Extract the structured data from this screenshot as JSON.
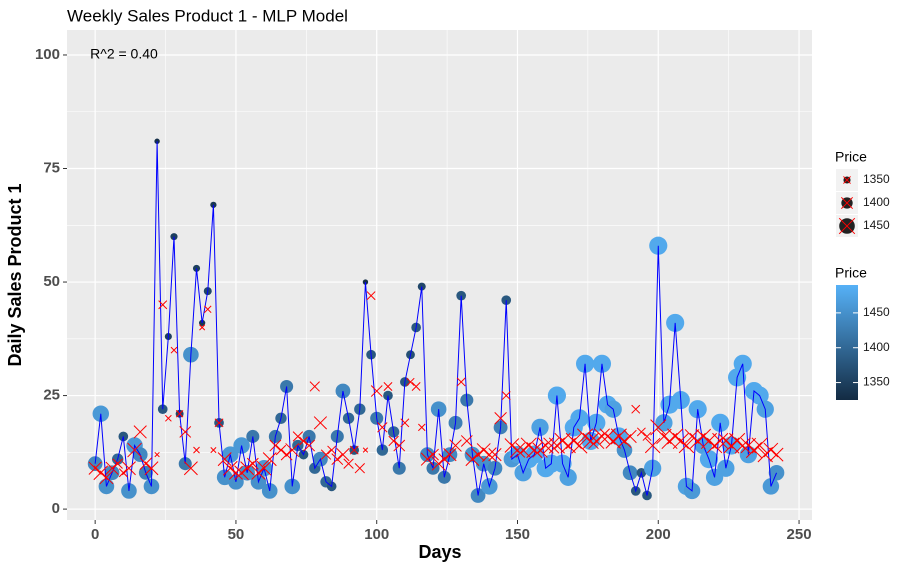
{
  "chart_data": {
    "type": "scatter",
    "title": "Weekly Sales Product 1 - MLP Model",
    "annotation": "R^2 = 0.40",
    "x_label": "Days",
    "y_label": "Daily Sales Product 1",
    "xlim": [
      -10,
      254.6
    ],
    "ylim": [
      -2.4,
      105.5
    ],
    "xticks": [
      0,
      50,
      100,
      150,
      200,
      250
    ],
    "yticks": [
      0,
      25,
      50,
      75,
      100
    ],
    "grid": true,
    "x": [
      0,
      2,
      4,
      6,
      8,
      10,
      12,
      14,
      16,
      18,
      20,
      22,
      24,
      26,
      28,
      30,
      32,
      34,
      36,
      38,
      40,
      42,
      44,
      46,
      48,
      50,
      52,
      54,
      56,
      58,
      60,
      62,
      64,
      66,
      68,
      70,
      72,
      74,
      76,
      78,
      80,
      82,
      84,
      86,
      88,
      90,
      92,
      94,
      96,
      98,
      100,
      102,
      104,
      106,
      108,
      110,
      112,
      114,
      116,
      118,
      120,
      122,
      124,
      126,
      128,
      130,
      132,
      134,
      136,
      138,
      140,
      142,
      144,
      146,
      148,
      150,
      152,
      154,
      156,
      158,
      160,
      162,
      164,
      166,
      168,
      170,
      172,
      174,
      176,
      178,
      180,
      182,
      184,
      186,
      188,
      190,
      192,
      194,
      196,
      198,
      200,
      202,
      204,
      206,
      208,
      210,
      212,
      214,
      216,
      218,
      220,
      222,
      224,
      226,
      228,
      230,
      232,
      234,
      236,
      238,
      240,
      242
    ],
    "sales": {
      "color": "#0000ff",
      "values": [
        10,
        21,
        5,
        8,
        11,
        16,
        4,
        14,
        12,
        8,
        5,
        81,
        22,
        38,
        60,
        21,
        10,
        34,
        53,
        41,
        48,
        67,
        19,
        7,
        12,
        6,
        14,
        8,
        16,
        6,
        9,
        4,
        16,
        20,
        27,
        5,
        14,
        12,
        16,
        9,
        11,
        6,
        5,
        16,
        26,
        20,
        13,
        22,
        50,
        34,
        20,
        13,
        25,
        17,
        9,
        28,
        34,
        40,
        49,
        12,
        9,
        22,
        7,
        12,
        19,
        47,
        24,
        12,
        3,
        10,
        5,
        9,
        18,
        46,
        11,
        12,
        8,
        11,
        12,
        18,
        9,
        10,
        25,
        10,
        7,
        18,
        20,
        32,
        15,
        19,
        32,
        23,
        22,
        16,
        13,
        8,
        4,
        8,
        3,
        9,
        58,
        19,
        23,
        41,
        24,
        5,
        4,
        22,
        14,
        11,
        7,
        19,
        9,
        14,
        29,
        32,
        12,
        26,
        25,
        22,
        5,
        8
      ]
    },
    "price": [
      1440,
      1460,
      1450,
      1440,
      1400,
      1380,
      1450,
      1460,
      1440,
      1430,
      1450,
      1330,
      1380,
      1350,
      1350,
      1360,
      1420,
      1450,
      1350,
      1340,
      1360,
      1340,
      1380,
      1450,
      1460,
      1450,
      1460,
      1450,
      1420,
      1450,
      1460,
      1450,
      1420,
      1400,
      1420,
      1450,
      1400,
      1380,
      1420,
      1400,
      1440,
      1400,
      1380,
      1420,
      1440,
      1400,
      1380,
      1400,
      1330,
      1380,
      1420,
      1400,
      1380,
      1400,
      1420,
      1380,
      1370,
      1380,
      1360,
      1440,
      1420,
      1450,
      1420,
      1440,
      1430,
      1380,
      1420,
      1450,
      1440,
      1450,
      1460,
      1440,
      1430,
      1380,
      1460,
      1470,
      1470,
      1480,
      1480,
      1470,
      1480,
      1480,
      1480,
      1480,
      1470,
      1480,
      1480,
      1480,
      1480,
      1480,
      1480,
      1480,
      1470,
      1480,
      1450,
      1440,
      1380,
      1380,
      1380,
      1470,
      1480,
      1470,
      1480,
      1480,
      1480,
      1470,
      1460,
      1480,
      1470,
      1480,
      1470,
      1480,
      1470,
      1480,
      1480,
      1480,
      1470,
      1480,
      1480,
      1470,
      1460,
      1450
    ],
    "predicted": {
      "color": "#ff0000",
      "values": [
        9,
        8,
        7,
        9,
        10,
        8,
        9,
        13,
        17,
        10,
        9,
        12,
        45,
        20,
        35,
        21,
        17,
        9,
        13,
        40,
        44,
        13,
        19,
        11,
        9,
        8,
        8,
        9,
        10,
        8,
        9,
        11,
        14,
        13,
        12,
        13,
        16,
        15,
        14,
        27,
        19,
        12,
        13,
        11,
        12,
        10,
        13,
        9,
        13,
        47,
        26,
        18,
        27,
        15,
        14,
        19,
        28,
        27,
        18,
        11,
        12,
        10,
        11,
        12,
        14,
        28,
        15,
        11,
        12,
        13,
        12,
        12,
        20,
        25,
        14,
        13,
        13,
        14,
        13,
        13,
        14,
        14,
        14,
        15,
        14,
        15,
        14,
        16,
        15,
        15,
        16,
        16,
        15,
        16,
        15,
        16,
        22,
        17,
        16,
        14,
        18,
        16,
        15,
        16,
        15,
        14,
        16,
        15,
        16,
        15,
        14,
        15,
        15,
        14,
        15,
        14,
        14,
        13,
        14,
        12,
        13,
        12
      ]
    },
    "size_legend": {
      "title": "Price",
      "breaks": [
        1350,
        1400,
        1450
      ]
    },
    "color_legend": {
      "title": "Price",
      "limits": [
        1325,
        1490
      ],
      "ticks": [
        1350,
        1400,
        1450
      ],
      "low": "#132B43",
      "high": "#56B1F7"
    }
  }
}
